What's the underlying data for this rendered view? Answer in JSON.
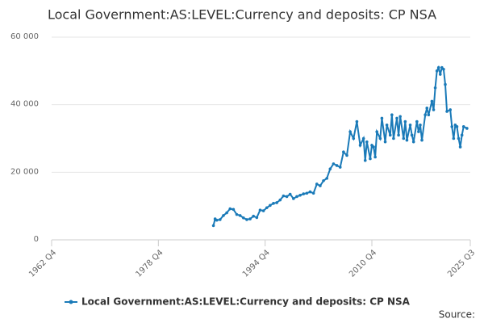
{
  "chart_data": {
    "type": "line",
    "title": "Local Government:AS:LEVEL:Currency and deposits: CP NSA",
    "source": "Source:",
    "x": [
      1987.0,
      1987.25,
      1987.5,
      1988,
      1988.5,
      1989,
      1989.5,
      1990,
      1990.5,
      1991,
      1991.5,
      1992,
      1992.5,
      1993,
      1993.5,
      1994,
      1994.5,
      1995,
      1995.5,
      1996,
      1996.5,
      1997,
      1997.5,
      1998,
      1998.5,
      1999,
      1999.5,
      2000,
      2000.5,
      2001,
      2001.5,
      2002,
      2002.5,
      2003,
      2003.5,
      2004,
      2004.5,
      2005,
      2005.5,
      2006,
      2006.5,
      2007,
      2007.5,
      2008,
      2008.5,
      2009,
      2009.5,
      2009.75,
      2010,
      2010.5,
      2010.75,
      2011,
      2011.25,
      2011.5,
      2012,
      2012.25,
      2012.75,
      2013,
      2013.5,
      2013.75,
      2014,
      2014.5,
      2014.75,
      2015,
      2015.5,
      2015.75,
      2016,
      2016.5,
      2016.75,
      2017,
      2017.5,
      2017.75,
      2018,
      2018.25,
      2018.75,
      2019,
      2019.25,
      2019.75,
      2020,
      2020.25,
      2020.5,
      2020.75,
      2021,
      2021.25,
      2021.5,
      2021.75,
      2022,
      2022.5,
      2022.75,
      2023,
      2023.25,
      2023.5,
      2023.75,
      2024,
      2024.25,
      2024.5,
      2025
    ],
    "series": [
      {
        "name": "Local Government:AS:LEVEL:Currency and deposits: CP NSA",
        "color": "#1a7ab8",
        "values": [
          4200,
          6200,
          5800,
          6000,
          7200,
          8000,
          9200,
          9000,
          7500,
          7200,
          6500,
          6000,
          6200,
          7000,
          6600,
          8800,
          8600,
          9500,
          10200,
          10800,
          11000,
          11800,
          13000,
          12800,
          13500,
          12200,
          12800,
          13200,
          13600,
          13800,
          14200,
          13800,
          16500,
          16000,
          17500,
          18200,
          21000,
          22500,
          22000,
          21500,
          26000,
          25000,
          32000,
          30000,
          35000,
          28000,
          30000,
          23500,
          29000,
          24000,
          28000,
          27500,
          24500,
          32000,
          30000,
          36000,
          29000,
          34000,
          31000,
          37000,
          30000,
          36000,
          31000,
          36500,
          30000,
          35000,
          29500,
          34000,
          31000,
          29000,
          35000,
          32000,
          34000,
          29500,
          37000,
          39000,
          37000,
          41000,
          38500,
          45000,
          50000,
          51000,
          49000,
          51000,
          50500,
          46000,
          38000,
          38500,
          33500,
          30000,
          34000,
          33500,
          30000,
          27500,
          31000,
          33500,
          33000
        ]
      }
    ],
    "xlim": [
      1962.75,
      2025.5
    ],
    "xticks": [
      {
        "value": 1962.75,
        "label": "1962 Q4"
      },
      {
        "value": 1978.75,
        "label": "1978 Q4"
      },
      {
        "value": 1994.75,
        "label": "1994 Q4"
      },
      {
        "value": 2010.75,
        "label": "2010 Q4"
      },
      {
        "value": 2025.5,
        "label": "2025 Q3"
      }
    ],
    "ylim": [
      0,
      60000
    ],
    "yticks": [
      0,
      {
        "value": 20000,
        "label": "20 000"
      },
      {
        "value": 40000,
        "label": "40 000"
      },
      {
        "value": 60000,
        "label": "60 000"
      }
    ],
    "grid": true
  }
}
